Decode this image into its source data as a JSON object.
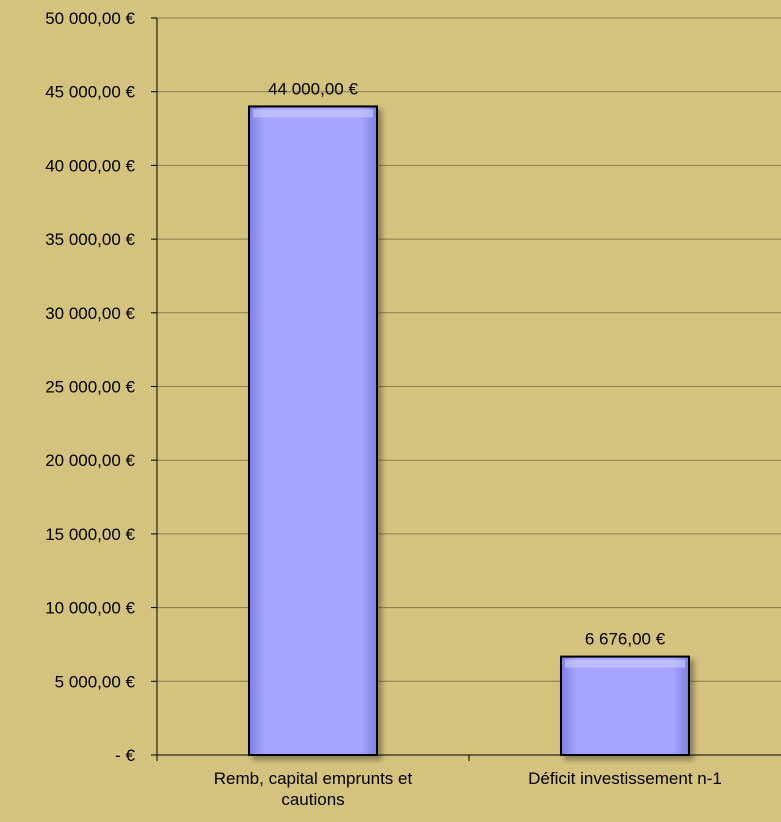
{
  "chart_data": {
    "type": "bar",
    "categories": [
      "Remb, capital emprunts et\ncautions",
      "Déficit investissement n-1"
    ],
    "values": [
      44000,
      6676
    ],
    "value_labels": [
      "44 000,00 €",
      "6 676,00 €"
    ],
    "y_tick_values": [
      0,
      5000,
      10000,
      15000,
      20000,
      25000,
      30000,
      35000,
      40000,
      45000,
      50000
    ],
    "y_tick_labels": [
      "-   €",
      "5 000,00 €",
      "10 000,00 €",
      "15 000,00 €",
      "20 000,00 €",
      "25 000,00 €",
      "30 000,00 €",
      "35 000,00 €",
      "40 000,00 €",
      "45 000,00 €",
      "50 000,00 €"
    ],
    "ylim": [
      0,
      50000
    ],
    "grid": true,
    "legend": "none",
    "colors": {
      "background": "#d4c27f",
      "bar_fill": "#a0a0ff",
      "bar_stroke": "#000000",
      "gridline": "#8a7c4a",
      "axis": "#000000"
    }
  }
}
